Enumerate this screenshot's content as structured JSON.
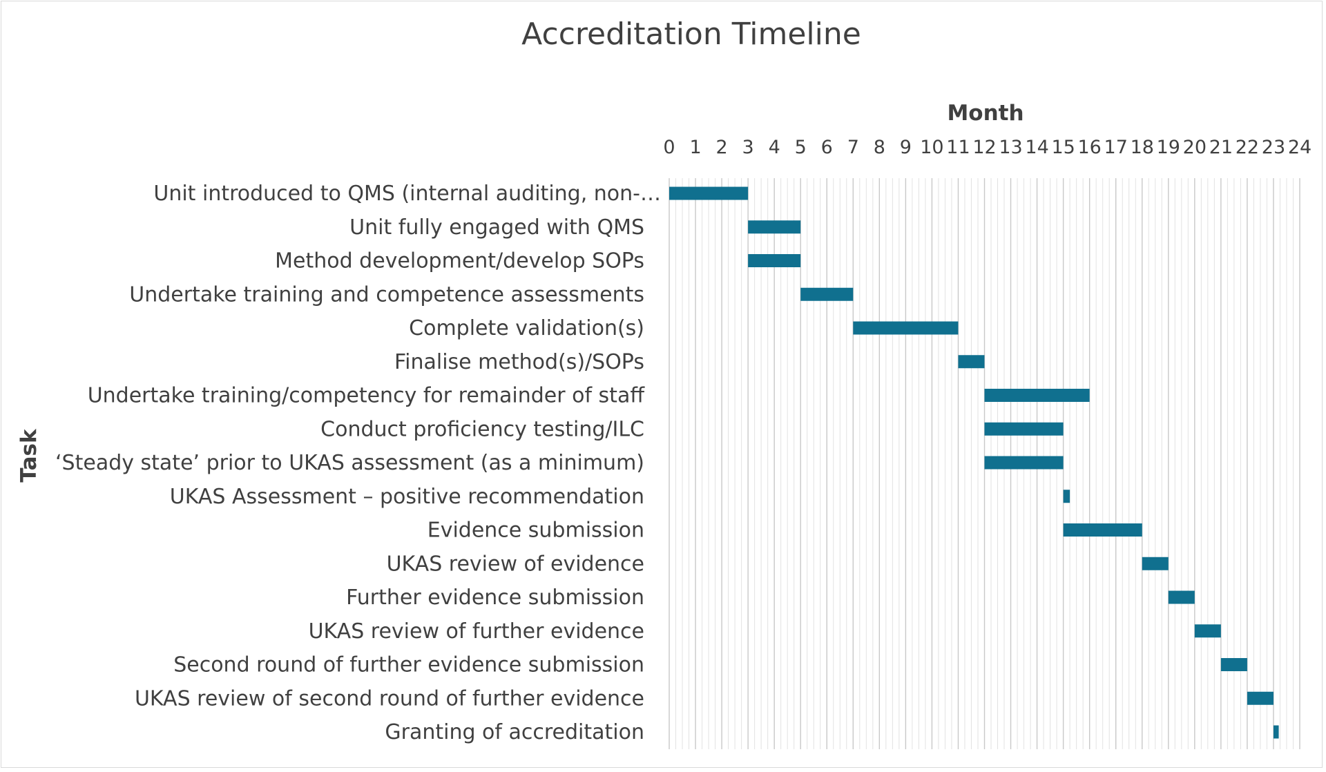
{
  "chart_data": {
    "type": "bar",
    "orientation": "horizontal-gantt",
    "title": "Accreditation Timeline",
    "xlabel": "Month",
    "ylabel": "Task",
    "xlim": [
      0,
      24
    ],
    "x_axis_position": "top",
    "x_ticks": [
      0,
      1,
      2,
      3,
      4,
      5,
      6,
      7,
      8,
      9,
      10,
      11,
      12,
      13,
      14,
      15,
      16,
      17,
      18,
      19,
      20,
      21,
      22,
      23,
      24
    ],
    "grid": true,
    "legend": "none",
    "bar_color": "#10708f",
    "tasks": [
      {
        "label": "Unit introduced to QMS (internal auditing, non-…",
        "start": 0,
        "end": 3
      },
      {
        "label": "Unit fully engaged with QMS",
        "start": 3,
        "end": 5
      },
      {
        "label": "Method development/develop SOPs",
        "start": 3,
        "end": 5
      },
      {
        "label": "Undertake training and competence assessments",
        "start": 5,
        "end": 7
      },
      {
        "label": "Complete validation(s)",
        "start": 7,
        "end": 11
      },
      {
        "label": "Finalise method(s)/SOPs",
        "start": 11,
        "end": 12
      },
      {
        "label": "Undertake training/competency for remainder of staff",
        "start": 12,
        "end": 16
      },
      {
        "label": "Conduct proficiency testing/ILC",
        "start": 12,
        "end": 15
      },
      {
        "label": "‘Steady state’ prior to UKAS assessment (as a minimum)",
        "start": 12,
        "end": 15
      },
      {
        "label": "UKAS Assessment – positive recommendation",
        "start": 15,
        "end": 15.25
      },
      {
        "label": "Evidence submission",
        "start": 15,
        "end": 18
      },
      {
        "label": "UKAS review of evidence",
        "start": 18,
        "end": 19
      },
      {
        "label": "Further evidence submission",
        "start": 19,
        "end": 20
      },
      {
        "label": "UKAS review of further evidence",
        "start": 20,
        "end": 21
      },
      {
        "label": "Second round of further evidence submission",
        "start": 21,
        "end": 22
      },
      {
        "label": "UKAS review of second round of further evidence",
        "start": 22,
        "end": 23
      },
      {
        "label": "Granting of accreditation",
        "start": 23,
        "end": 23.2
      }
    ]
  }
}
